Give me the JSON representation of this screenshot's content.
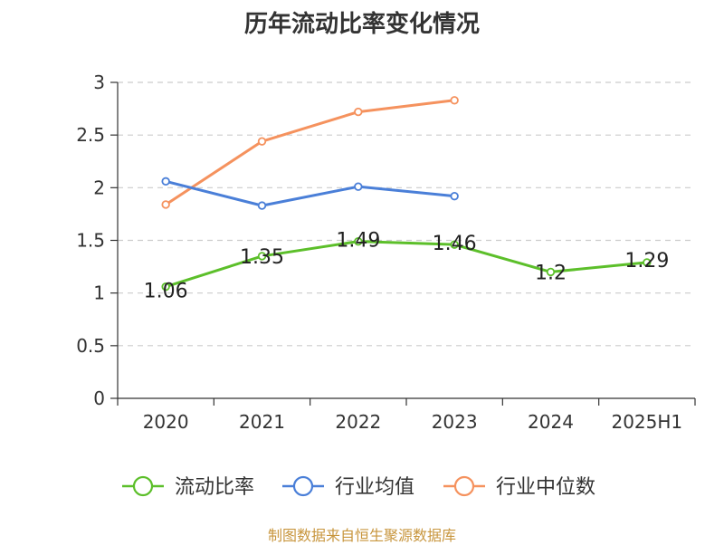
{
  "chart_data": {
    "type": "line",
    "title": "历年流动比率变化情况",
    "categories": [
      "2020",
      "2021",
      "2022",
      "2023",
      "2024",
      "2025H1"
    ],
    "ylim": [
      0,
      3
    ],
    "yticks": [
      "0",
      "0.5",
      "1",
      "1.5",
      "2",
      "2.5",
      "3"
    ],
    "grid": true,
    "legend_position": "bottom",
    "series": [
      {
        "name": "流动比率",
        "color": "#5cbf2a",
        "values": [
          1.06,
          1.35,
          1.49,
          1.46,
          1.2,
          1.29
        ],
        "labels": [
          "1.06",
          "1.35",
          "1.49",
          "1.46",
          "1.2",
          "1.29"
        ]
      },
      {
        "name": "行业均值",
        "color": "#4a7fd8",
        "values": [
          2.06,
          1.83,
          2.01,
          1.92,
          null,
          null
        ]
      },
      {
        "name": "行业中位数",
        "color": "#f5925e",
        "values": [
          1.84,
          2.44,
          2.72,
          2.83,
          null,
          null
        ]
      }
    ]
  },
  "source": "制图数据来自恒生聚源数据库"
}
